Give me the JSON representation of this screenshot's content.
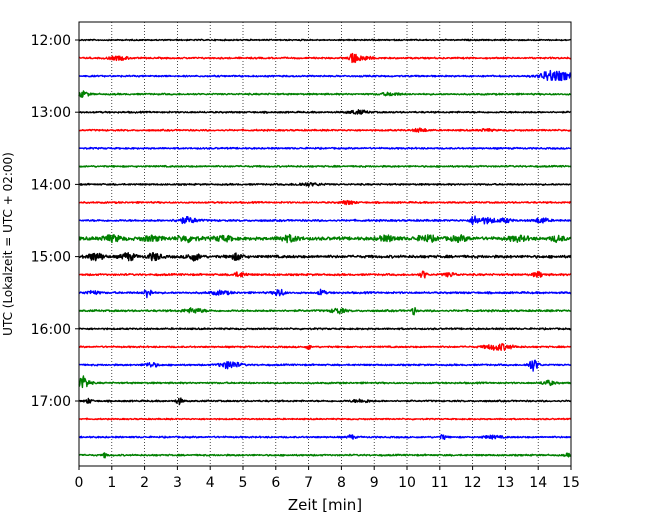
{
  "chart_data": {
    "type": "line",
    "title": "",
    "xlabel": "Zeit  [min]",
    "ylabel": "UTC (Lokalzeit = UTC + 02:00)",
    "xlim": [
      0,
      15
    ],
    "x_ticks": [
      0,
      1,
      2,
      3,
      4,
      5,
      6,
      7,
      8,
      9,
      10,
      11,
      12,
      13,
      14,
      15
    ],
    "x_tick_labels": [
      "0",
      "1",
      "2",
      "3",
      "4",
      "5",
      "6",
      "7",
      "8",
      "9",
      "10",
      "11",
      "12",
      "13",
      "14",
      "15"
    ],
    "y_tick_labels": [
      {
        "label": "12:00",
        "row": 0
      },
      {
        "label": "13:00",
        "row": 4
      },
      {
        "label": "14:00",
        "row": 8
      },
      {
        "label": "15:00",
        "row": 12
      },
      {
        "label": "16:00",
        "row": 16
      },
      {
        "label": "17:00",
        "row": 20
      }
    ],
    "grid": "vertical dotted",
    "colors": [
      "#000000",
      "#ff0000",
      "#0000ff",
      "#008000"
    ],
    "traces": [
      {
        "start": "12:00",
        "color": "#000000",
        "noise": 0.25,
        "events": []
      },
      {
        "start": "12:15",
        "color": "#ff0000",
        "noise": 0.3,
        "events": [
          [
            1.2,
            0.8,
            0.3
          ],
          [
            8.35,
            2.8,
            0.08
          ],
          [
            8.6,
            1.0,
            0.3
          ]
        ]
      },
      {
        "start": "12:30",
        "color": "#0000ff",
        "noise": 0.3,
        "events": [
          [
            14.6,
            1.8,
            0.5
          ],
          [
            14.3,
            1.0,
            0.2
          ]
        ]
      },
      {
        "start": "12:45",
        "color": "#008000",
        "noise": 0.3,
        "events": [
          [
            0.1,
            1.2,
            0.2
          ],
          [
            9.5,
            0.6,
            0.3
          ]
        ]
      },
      {
        "start": "13:00",
        "color": "#000000",
        "noise": 0.3,
        "events": [
          [
            8.5,
            0.8,
            0.3
          ]
        ]
      },
      {
        "start": "13:15",
        "color": "#ff0000",
        "noise": 0.3,
        "events": [
          [
            10.4,
            0.8,
            0.2
          ],
          [
            12.4,
            0.5,
            0.2
          ]
        ]
      },
      {
        "start": "13:30",
        "color": "#0000ff",
        "noise": 0.3,
        "events": []
      },
      {
        "start": "13:45",
        "color": "#008000",
        "noise": 0.3,
        "events": []
      },
      {
        "start": "14:00",
        "color": "#000000",
        "noise": 0.3,
        "events": [
          [
            7.0,
            0.6,
            0.4
          ]
        ]
      },
      {
        "start": "14:15",
        "color": "#ff0000",
        "noise": 0.3,
        "events": [
          [
            8.2,
            0.8,
            0.2
          ]
        ]
      },
      {
        "start": "14:30",
        "color": "#0000ff",
        "noise": 0.35,
        "events": [
          [
            3.3,
            1.3,
            0.3
          ],
          [
            12.05,
            2.0,
            0.1
          ],
          [
            12.4,
            1.2,
            0.3
          ],
          [
            14.1,
            1.2,
            0.2
          ],
          [
            13.0,
            0.8,
            0.2
          ]
        ]
      },
      {
        "start": "14:45",
        "color": "#008000",
        "noise": 0.6,
        "events": [
          [
            1.0,
            1.2,
            0.3
          ],
          [
            2.2,
            1.0,
            0.3
          ],
          [
            3.3,
            1.2,
            0.3
          ],
          [
            4.4,
            1.0,
            0.3
          ],
          [
            6.4,
            1.2,
            0.3
          ],
          [
            9.4,
            1.0,
            0.3
          ],
          [
            10.6,
            1.2,
            0.3
          ],
          [
            11.6,
            1.0,
            0.3
          ],
          [
            13.4,
            1.0,
            0.3
          ],
          [
            14.6,
            1.2,
            0.2
          ]
        ]
      },
      {
        "start": "15:00",
        "color": "#000000",
        "noise": 0.5,
        "events": [
          [
            0.5,
            1.6,
            0.25
          ],
          [
            1.5,
            1.6,
            0.2
          ],
          [
            2.3,
            1.6,
            0.2
          ],
          [
            3.5,
            1.6,
            0.2
          ],
          [
            4.8,
            1.3,
            0.2
          ]
        ]
      },
      {
        "start": "15:15",
        "color": "#ff0000",
        "noise": 0.35,
        "events": [
          [
            4.9,
            1.0,
            0.2
          ],
          [
            10.5,
            1.6,
            0.1
          ],
          [
            11.3,
            0.8,
            0.2
          ],
          [
            14.0,
            1.2,
            0.15
          ]
        ]
      },
      {
        "start": "15:30",
        "color": "#0000ff",
        "noise": 0.35,
        "events": [
          [
            0.4,
            0.8,
            0.2
          ],
          [
            2.1,
            2.6,
            0.1
          ],
          [
            4.3,
            0.8,
            0.3
          ],
          [
            6.1,
            1.6,
            0.15
          ],
          [
            7.4,
            1.4,
            0.1
          ]
        ]
      },
      {
        "start": "15:45",
        "color": "#008000",
        "noise": 0.35,
        "events": [
          [
            3.5,
            1.0,
            0.3
          ],
          [
            7.9,
            1.2,
            0.2
          ],
          [
            10.2,
            1.8,
            0.06
          ]
        ]
      },
      {
        "start": "16:00",
        "color": "#000000",
        "noise": 0.3,
        "events": []
      },
      {
        "start": "16:15",
        "color": "#ff0000",
        "noise": 0.3,
        "events": [
          [
            7.0,
            1.2,
            0.06
          ],
          [
            12.8,
            1.4,
            0.4
          ]
        ]
      },
      {
        "start": "16:30",
        "color": "#0000ff",
        "noise": 0.3,
        "events": [
          [
            2.2,
            1.0,
            0.2
          ],
          [
            4.6,
            1.6,
            0.3
          ],
          [
            13.85,
            2.6,
            0.15
          ]
        ]
      },
      {
        "start": "16:45",
        "color": "#008000",
        "noise": 0.3,
        "events": [
          [
            0.1,
            3.0,
            0.2
          ],
          [
            14.3,
            1.0,
            0.2
          ]
        ]
      },
      {
        "start": "17:00",
        "color": "#000000",
        "noise": 0.3,
        "events": [
          [
            0.3,
            1.0,
            0.1
          ],
          [
            3.05,
            1.4,
            0.1
          ],
          [
            8.6,
            0.6,
            0.3
          ]
        ]
      },
      {
        "start": "17:15",
        "color": "#ff0000",
        "noise": 0.25,
        "events": []
      },
      {
        "start": "17:30",
        "color": "#0000ff",
        "noise": 0.3,
        "events": [
          [
            8.3,
            1.0,
            0.1
          ],
          [
            11.1,
            1.0,
            0.1
          ],
          [
            12.6,
            0.6,
            0.3
          ]
        ]
      },
      {
        "start": "17:45",
        "color": "#008000",
        "noise": 0.3,
        "events": [
          [
            0.8,
            1.4,
            0.05
          ],
          [
            14.9,
            0.6,
            0.1
          ]
        ]
      }
    ]
  }
}
